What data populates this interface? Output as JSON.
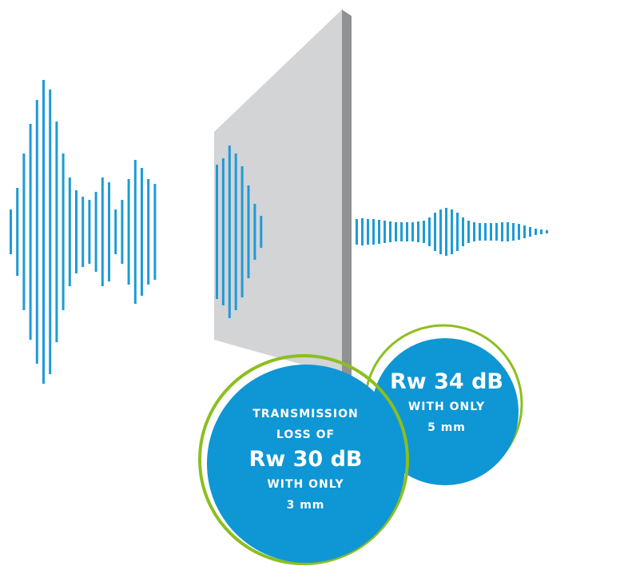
{
  "colors": {
    "wave": "#1e9bd7",
    "panel_face": "#d3d4d6",
    "panel_edge": "#8f9193",
    "badge_fill": "#0f96d4",
    "badge_ring": "#8bbf1f",
    "badge_text": "#ffffff"
  },
  "badges": {
    "thick": {
      "line1": "TRANSMISSION",
      "line2": "LOSS OF",
      "value": "Rw 30 dB",
      "line3": "WITH ONLY",
      "line4": "3 mm"
    },
    "thin": {
      "value": "Rw 34 dB",
      "line1": "WITH ONLY",
      "line2": "5 mm"
    }
  }
}
